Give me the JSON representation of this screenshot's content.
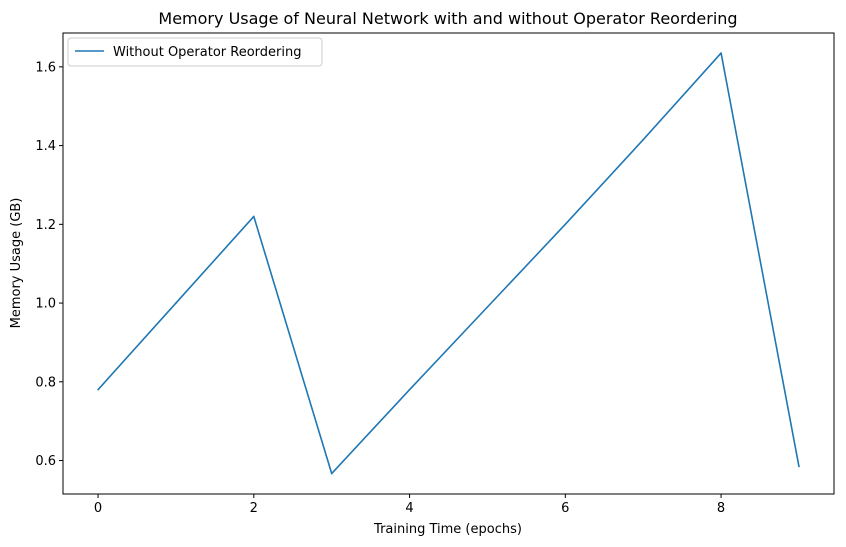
{
  "chart_data": {
    "type": "line",
    "title": "Memory Usage of Neural Network with and without Operator Reordering",
    "xlabel": "Training Time (epochs)",
    "ylabel": "Memory Usage (GB)",
    "xlim": [
      -0.45,
      9.45
    ],
    "ylim": [
      0.515,
      1.686
    ],
    "xticks": [
      0,
      2,
      4,
      6,
      8
    ],
    "xtick_labels": [
      "0",
      "2",
      "4",
      "6",
      "8"
    ],
    "yticks": [
      0.6,
      0.8,
      1.0,
      1.2,
      1.4,
      1.6
    ],
    "ytick_labels": [
      "0.6",
      "0.8",
      "1.0",
      "1.2",
      "1.4",
      "1.6"
    ],
    "grid": false,
    "legend_position": "top-left",
    "series": [
      {
        "name": "Without Operator Reordering",
        "color": "#1f77b4",
        "x": [
          0,
          1,
          2,
          3,
          4,
          5,
          6,
          7,
          8,
          9
        ],
        "y": [
          0.78,
          1.0,
          1.22,
          0.567,
          0.78,
          0.99,
          1.2,
          1.415,
          1.635,
          0.585
        ]
      }
    ]
  }
}
